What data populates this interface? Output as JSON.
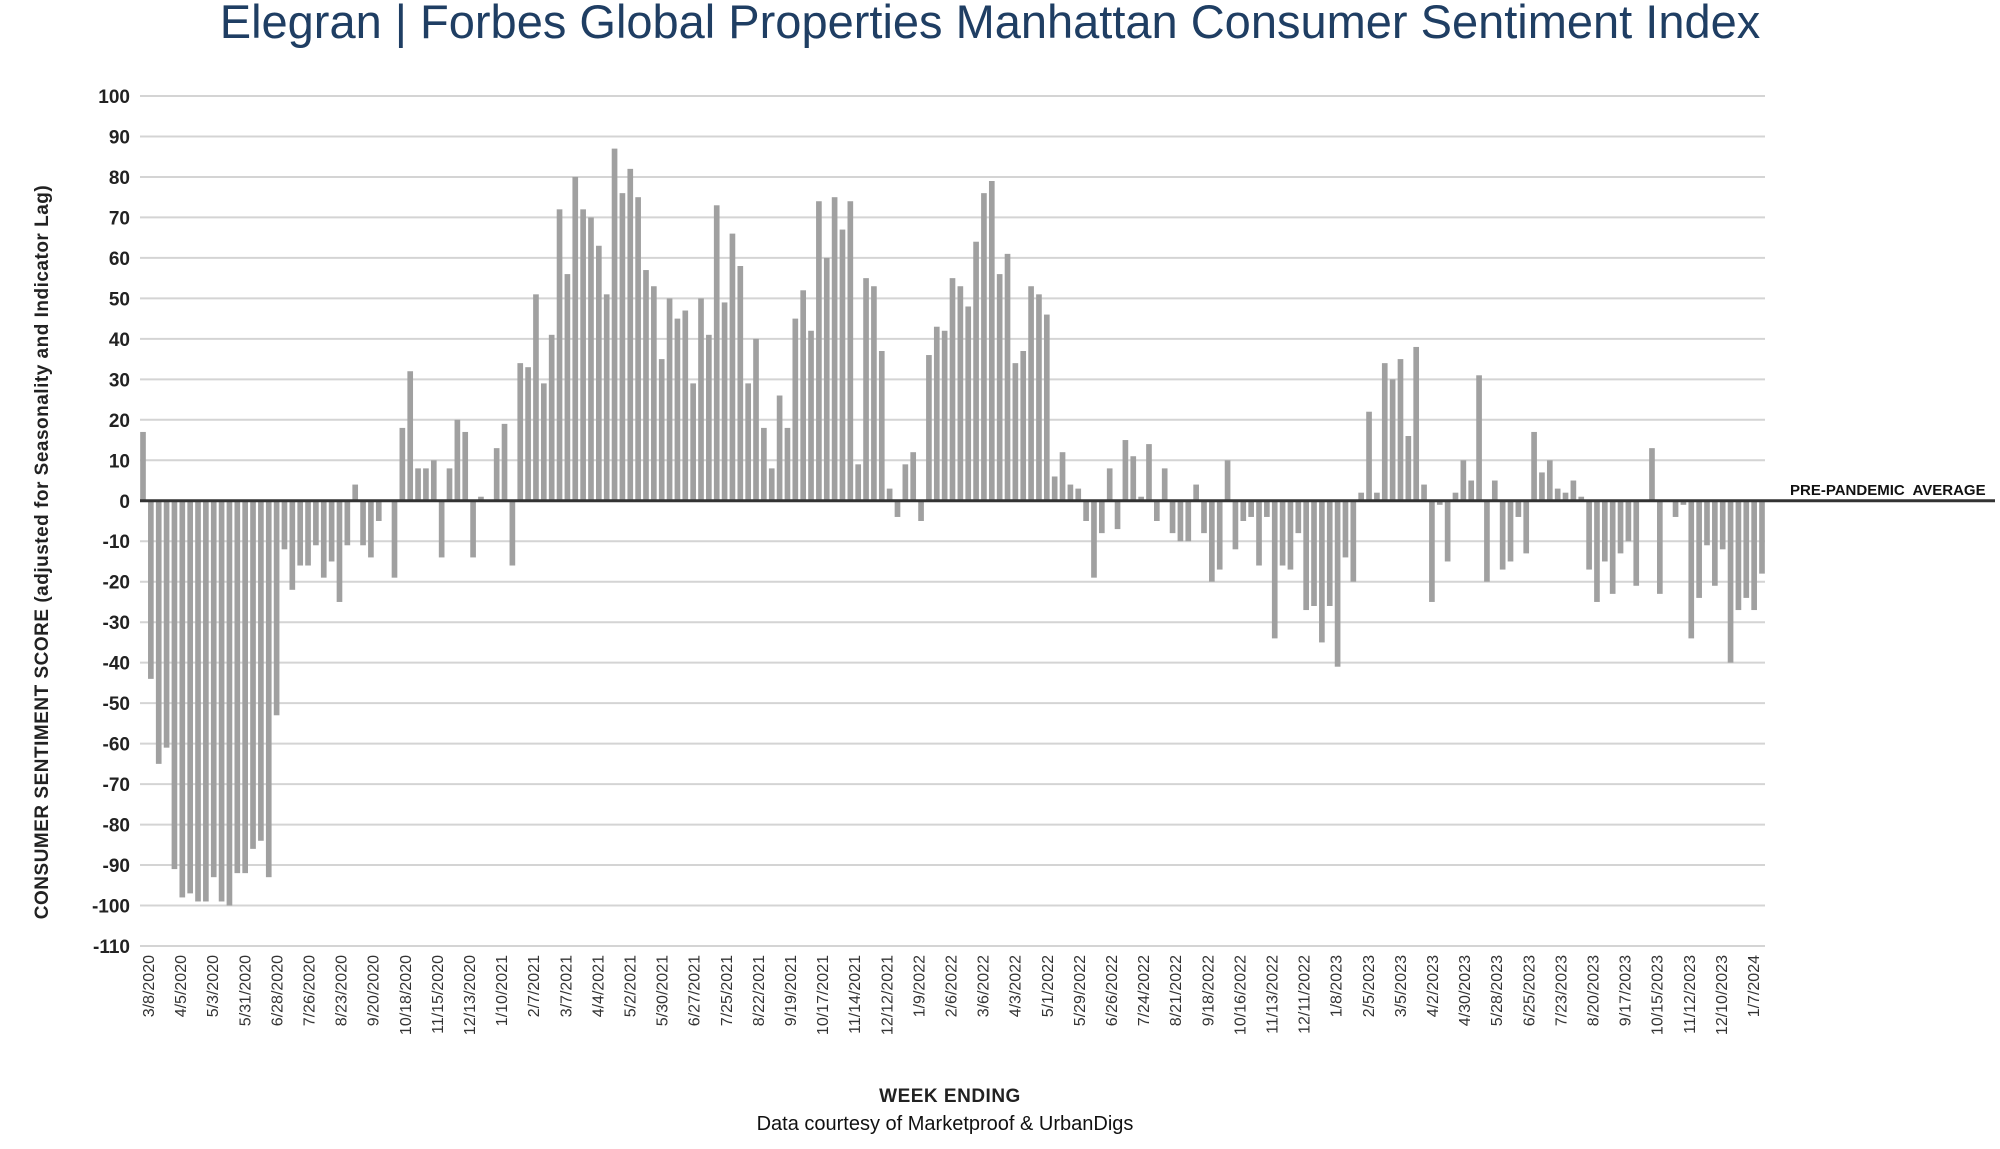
{
  "chart_data": {
    "type": "bar",
    "title": "Elegran | Forbes Global Properties Manhattan Consumer Sentiment Index",
    "ylabel": "CONSUMER SENTIMENT SCORE (adjusted for Seasonality and Indicator Lag)",
    "xlabel": "WEEK ENDING",
    "source": "Data courtesy of Marketproof & UrbanDigs",
    "reference_line_label": "PRE-PANDEMIC  AVERAGE",
    "reference_line_value": 0,
    "ylim": [
      -110,
      100
    ],
    "yticks": [
      100,
      90,
      80,
      70,
      60,
      50,
      40,
      30,
      20,
      10,
      0,
      -10,
      -20,
      -30,
      -40,
      -50,
      -60,
      -70,
      -80,
      -90,
      -100,
      -110
    ],
    "grid": true,
    "bar_color": "#a0a0a0",
    "grid_color": "#d4d4d4",
    "title_color": "#1f3e63",
    "x_tick_labels": [
      "3/8/2020",
      "4/5/2020",
      "5/3/2020",
      "5/31/2020",
      "6/28/2020",
      "7/26/2020",
      "8/23/2020",
      "9/20/2020",
      "10/18/2020",
      "11/15/2020",
      "12/13/2020",
      "1/10/2021",
      "2/7/2021",
      "3/7/2021",
      "4/4/2021",
      "5/2/2021",
      "5/30/2021",
      "6/27/2021",
      "7/25/2021",
      "8/22/2021",
      "9/19/2021",
      "10/17/2021",
      "11/14/2021",
      "12/12/2021",
      "1/9/2022",
      "2/6/2022",
      "3/6/2022",
      "4/3/2022",
      "5/1/2022",
      "5/29/2022",
      "6/26/2022",
      "7/24/2022",
      "8/21/2022",
      "9/18/2022",
      "10/16/2022",
      "11/13/2022",
      "12/11/2022",
      "1/8/2023",
      "2/5/2023",
      "3/5/2023",
      "4/2/2023",
      "4/30/2023",
      "5/28/2023",
      "6/25/2023",
      "7/23/2023",
      "8/20/2023",
      "9/17/2023",
      "10/15/2023",
      "11/12/2023",
      "12/10/2023",
      "1/7/2024"
    ],
    "values": [
      17,
      -44,
      -65,
      -61,
      -91,
      -98,
      -97,
      -99,
      -99,
      -93,
      -99,
      -100,
      -92,
      -92,
      -86,
      -84,
      -93,
      -53,
      -12,
      -22,
      -16,
      -16,
      -11,
      -19,
      -15,
      -25,
      -11,
      4,
      -11,
      -14,
      -5,
      0,
      -19,
      18,
      32,
      8,
      8,
      10,
      -14,
      8,
      20,
      17,
      -14,
      1,
      0,
      13,
      19,
      -16,
      34,
      33,
      51,
      29,
      41,
      72,
      56,
      80,
      72,
      70,
      63,
      51,
      87,
      76,
      82,
      75,
      57,
      53,
      35,
      50,
      45,
      47,
      29,
      50,
      41,
      73,
      49,
      66,
      58,
      29,
      40,
      18,
      8,
      26,
      18,
      45,
      52,
      42,
      74,
      60,
      75,
      67,
      74,
      9,
      55,
      53,
      37,
      3,
      -4,
      9,
      12,
      -5,
      36,
      43,
      42,
      55,
      53,
      48,
      64,
      76,
      79,
      56,
      61,
      34,
      37,
      53,
      51,
      46,
      6,
      12,
      4,
      3,
      -5,
      -19,
      -8,
      8,
      -7,
      15,
      11,
      1,
      14,
      -5,
      8,
      -8,
      -10,
      -10,
      4,
      -8,
      -20,
      -17,
      10,
      -12,
      -5,
      -4,
      -16,
      -4,
      -34,
      -16,
      -17,
      -8,
      -27,
      -26,
      -35,
      -26,
      -41,
      -14,
      -20,
      2,
      22,
      2,
      34,
      30,
      35,
      16,
      38,
      4,
      -25,
      -1,
      -15,
      2,
      10,
      5,
      31,
      -20,
      5,
      -17,
      -15,
      -4,
      -13,
      17,
      7,
      10,
      3,
      2,
      5,
      1,
      -17,
      -25,
      -15,
      -23,
      -13,
      -10,
      -21,
      0,
      13,
      -23,
      0,
      -4,
      -1,
      -34,
      -24,
      -11,
      -21,
      -12,
      -40,
      -27,
      -24,
      -27,
      -18
    ]
  }
}
